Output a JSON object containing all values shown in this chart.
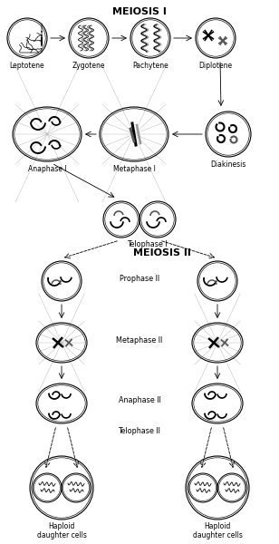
{
  "title1": "MEIOSIS I",
  "title2": "MEIOSIS II",
  "bg_color": "#ffffff",
  "text_color": "#000000",
  "row1_labels": [
    "Leptotene",
    "Zygotene",
    "Pachytene",
    "Diplotene"
  ],
  "row2_labels": [
    "Anaphase I",
    "Metaphase I",
    "Diakinesis"
  ],
  "label_telophase1": "Telophase I",
  "label_prophase2": "Prophase II",
  "label_metaphase2": "Metaphase II",
  "label_anaphase2": "Anaphase II",
  "label_telophase2": "Telophase II",
  "label_haploid": "Haploid\ndaughter cells",
  "figsize": [
    3.08,
    6.0
  ],
  "dpi": 100
}
